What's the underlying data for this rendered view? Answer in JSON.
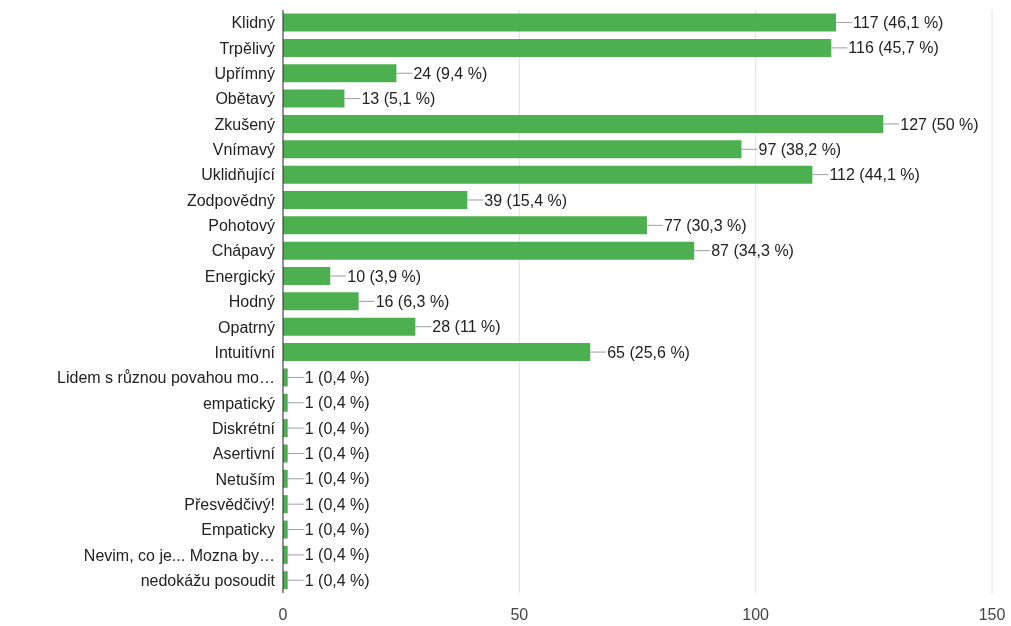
{
  "chart_data": {
    "type": "bar",
    "orientation": "horizontal",
    "categories": [
      "Klidný",
      "Trpělivý",
      "Upřímný",
      "Obětavý",
      "Zkušený",
      "Vnímavý",
      "Uklidňující",
      "Zodpovědný",
      "Pohotový",
      "Chápavý",
      "Energický",
      "Hodný",
      "Opatrný",
      "Intuitívní",
      "Lidem s různou povahou mo…",
      "empatický",
      "Diskrétní",
      "Asertivní",
      "Netuším",
      "Přesvědčivý!",
      "Empaticky",
      "Nevim, co je... Mozna by…",
      "nedokážu posoudit"
    ],
    "values": [
      117,
      116,
      24,
      13,
      127,
      97,
      112,
      39,
      77,
      87,
      10,
      16,
      28,
      65,
      1,
      1,
      1,
      1,
      1,
      1,
      1,
      1,
      1
    ],
    "value_labels": [
      "117 (46,1 %)",
      "116 (45,7 %)",
      "24 (9,4 %)",
      "13 (5,1 %)",
      "127 (50 %)",
      "97 (38,2 %)",
      "112 (44,1 %)",
      "39 (15,4 %)",
      "77 (30,3 %)",
      "87 (34,3 %)",
      "10 (3,9 %)",
      "16 (6,3 %)",
      "28 (11 %)",
      "65 (25,6 %)",
      "1 (0,4 %)",
      "1 (0,4 %)",
      "1 (0,4 %)",
      "1 (0,4 %)",
      "1 (0,4 %)",
      "1 (0,4 %)",
      "1 (0,4 %)",
      "1 (0,4 %)",
      "1 (0,4 %)"
    ],
    "color": "#4caf50",
    "xlim": [
      0,
      150
    ],
    "xticks": [
      0,
      50,
      100,
      150
    ],
    "grid": "x"
  }
}
